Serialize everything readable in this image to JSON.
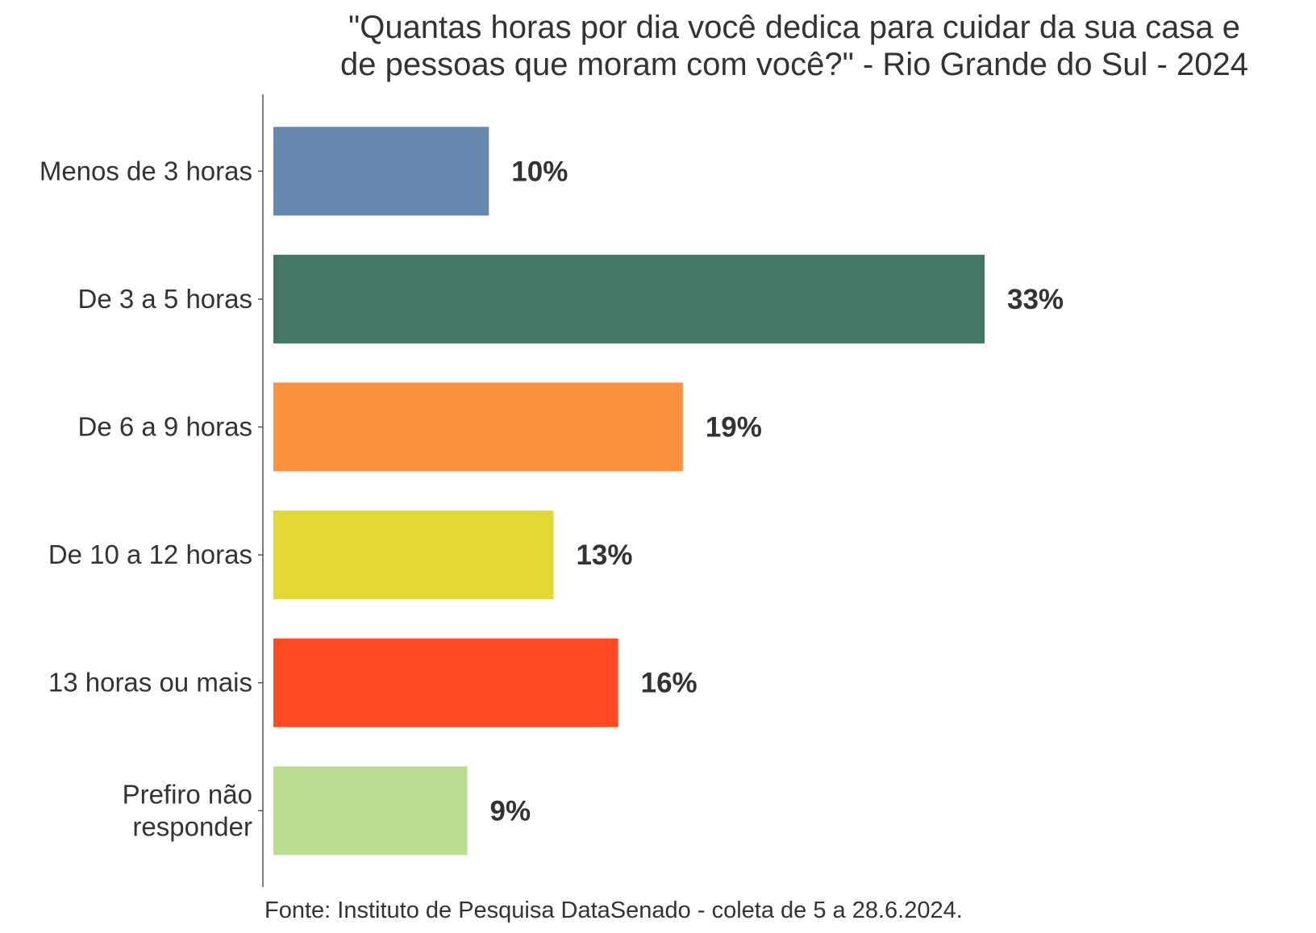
{
  "chart_data": {
    "type": "bar",
    "orientation": "horizontal",
    "title_lines": [
      "\"Quantas horas por dia você dedica para cuidar da sua casa e",
      "de pessoas que moram com você?\" - Rio Grande do Sul - 2024"
    ],
    "categories": [
      "Menos de 3 horas",
      "De 3 a 5 horas",
      "De 6 a 9 horas",
      "De 10 a 12 horas",
      "13 horas ou mais",
      "Prefiro não responder"
    ],
    "category_lines": [
      [
        "Menos de 3 horas"
      ],
      [
        "De 3 a 5 horas"
      ],
      [
        "De 6 a 9 horas"
      ],
      [
        "De 10 a 12 horas"
      ],
      [
        "13 horas ou mais"
      ],
      [
        "Prefiro não",
        "responder"
      ]
    ],
    "values": [
      10,
      33,
      19,
      13,
      16,
      9
    ],
    "value_labels": [
      "10%",
      "33%",
      "19%",
      "13%",
      "16%",
      "9%"
    ],
    "colors": [
      "#6688AF",
      "#457665",
      "#FA923E",
      "#E4D835",
      "#FF4A23",
      "#BADD91"
    ],
    "xlabel": "",
    "ylabel": "",
    "xlim": [
      0,
      33
    ],
    "grid": false,
    "source": "Fonte: Instituto de Pesquisa DataSenado - coleta de 5 a 28.6.2024."
  }
}
